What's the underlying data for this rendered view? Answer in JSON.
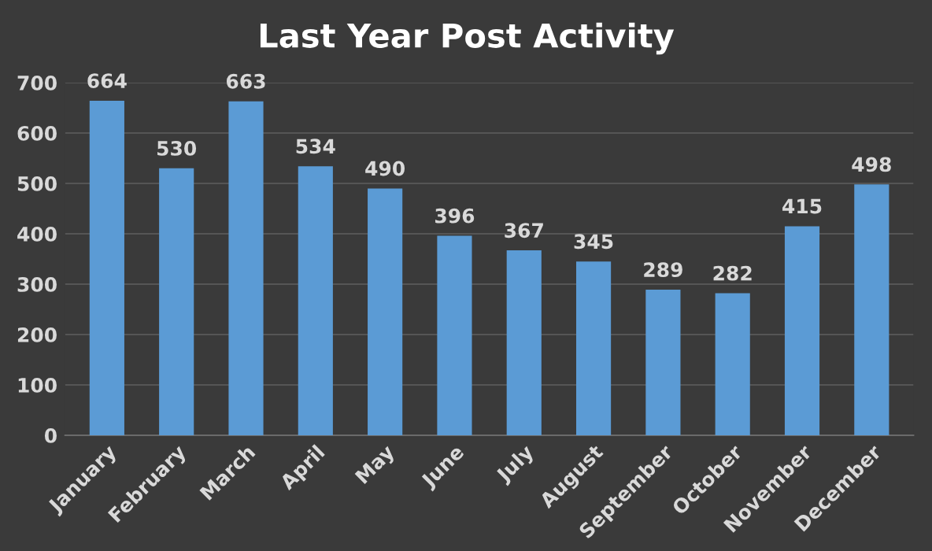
{
  "chart_data": {
    "type": "bar",
    "title": "Last Year Post Activity",
    "categories": [
      "January",
      "February",
      "March",
      "April",
      "May",
      "June",
      "July",
      "August",
      "September",
      "October",
      "November",
      "December"
    ],
    "values": [
      664,
      530,
      663,
      534,
      490,
      396,
      367,
      345,
      289,
      282,
      415,
      498
    ],
    "color": "#5b9bd5",
    "ylim": [
      0,
      700
    ],
    "yticks": [
      0,
      100,
      200,
      300,
      400,
      500,
      600,
      700
    ],
    "grid": "y",
    "data_labels": true
  }
}
